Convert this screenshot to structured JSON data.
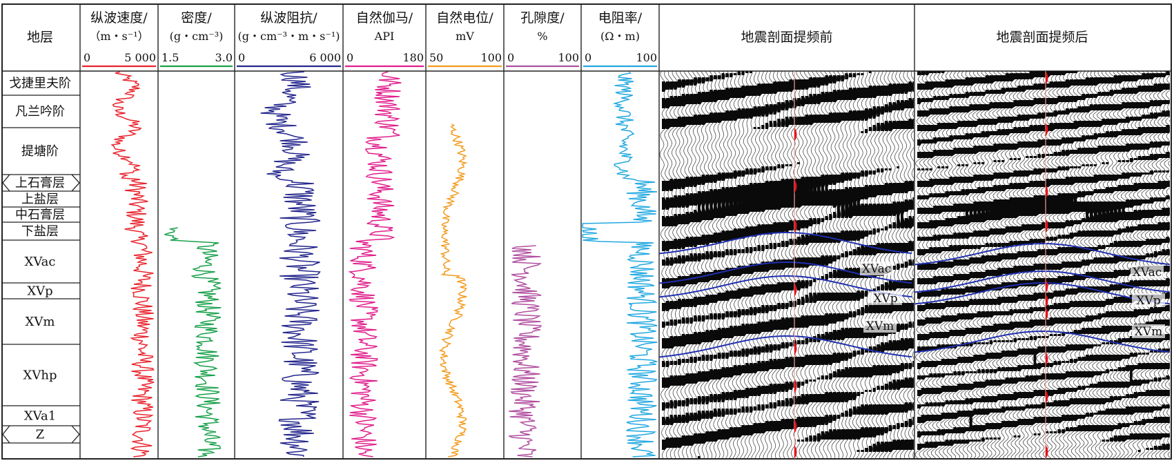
{
  "header": {
    "stratum": "地层",
    "columns": [
      {
        "title": "纵波速度/",
        "unit": "（m・s⁻¹）",
        "min": "0",
        "max": "5 000",
        "color": "#e8232d"
      },
      {
        "title": "密度/",
        "unit": "(g・cm⁻³)",
        "min": "1.5",
        "max": "3.0",
        "color": "#18a04a"
      },
      {
        "title": "纵波阻抗/",
        "unit": "(g・cm⁻³・m・s⁻¹)",
        "min": "0",
        "max": "6 000",
        "color": "#24268c"
      },
      {
        "title": "自然伽马/",
        "unit": "API",
        "min": "0",
        "max": "180",
        "color": "#e01e8c"
      },
      {
        "title": "自然电位/",
        "unit": "mV",
        "min": "50",
        "max": "100",
        "color": "#f39a1c"
      },
      {
        "title": "孔隙度/",
        "unit": "%",
        "min": "0",
        "max": "100",
        "color": "#b04fa0"
      },
      {
        "title": "电阻率/",
        "unit": "(Ω・m)",
        "min": "0",
        "max": "100",
        "color": "#22a8e0"
      }
    ],
    "seismic_before": "地震剖面提频前",
    "seismic_after": "地震剖面提频后"
  },
  "layers": [
    {
      "name": "戈捷里夫阶"
    },
    {
      "name": "凡兰吟阶"
    },
    {
      "name": "提塘阶"
    },
    {
      "name": "上石膏层"
    },
    {
      "name": "上盐层"
    },
    {
      "name": "中石膏层"
    },
    {
      "name": "下盐层"
    },
    {
      "name": "XVac"
    },
    {
      "name": "XVp"
    },
    {
      "name": "XVm"
    },
    {
      "name": "XVhp"
    },
    {
      "name": "XVa1"
    },
    {
      "name": "Z"
    }
  ],
  "horizons": {
    "before": [
      "XVac",
      "XVp",
      "XVm"
    ],
    "after": [
      "XVac",
      "XVp",
      "XVm"
    ]
  },
  "colors": {
    "frame": "#222222",
    "horizon_line": "#1f2fb0",
    "well_marker": "#e4121b"
  },
  "icons": [
    "wiggle-trace-seismic",
    "log-curve"
  ]
}
